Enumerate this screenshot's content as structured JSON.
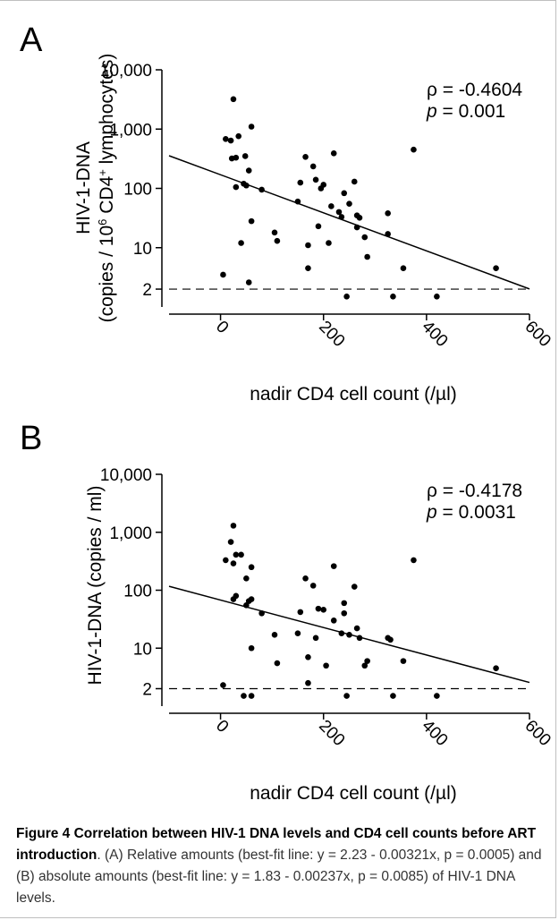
{
  "caption": {
    "title": "Figure 4 Correlation between HIV-1 DNA levels and CD4 cell counts before ART introduction",
    "text": ". (A) Relative amounts (best-fit line: y = 2.23 - 0.00321x, p = 0.0005) and (B) absolute amounts (best-fit line: y = 1.83 - 0.00237x, p = 0.0085) of HIV-1 DNA levels."
  },
  "chart_data": [
    {
      "type": "scatter",
      "panel": "A",
      "ylabel_line1": "HIV-1-DNA",
      "ylabel_line2_pre": "(copies / 10",
      "ylabel_line2_sup1": "6",
      "ylabel_line2_mid": " CD4",
      "ylabel_line2_sup2": "+",
      "ylabel_line2_post": " lymphocytes)",
      "xlabel": "nadir CD4 cell count (/µl)",
      "yscale": "log",
      "xlim": [
        -100,
        600
      ],
      "ylim_log10": [
        0,
        4
      ],
      "yticks": [
        {
          "v": 10000,
          "label": "10,000"
        },
        {
          "v": 1000,
          "label": "1,000"
        },
        {
          "v": 100,
          "label": "100"
        },
        {
          "v": 10,
          "label": "10"
        },
        {
          "v": 2,
          "label": "2"
        }
      ],
      "xticks": [
        {
          "v": 0,
          "label": "0"
        },
        {
          "v": 200,
          "label": "200"
        },
        {
          "v": 400,
          "label": "400"
        },
        {
          "v": 600,
          "label": "600"
        }
      ],
      "stats": {
        "rho": "ρ = -0.4604",
        "p_sym": "p",
        "p_val": " = 0.001"
      },
      "threshold": 2,
      "fit": {
        "intercept": 2.23,
        "slope": -0.00321
      },
      "points": [
        [
          5,
          3.5
        ],
        [
          10,
          680
        ],
        [
          20,
          640
        ],
        [
          25,
          3200
        ],
        [
          22,
          320
        ],
        [
          30,
          330
        ],
        [
          35,
          760
        ],
        [
          30,
          105
        ],
        [
          45,
          120
        ],
        [
          48,
          350
        ],
        [
          40,
          12
        ],
        [
          50,
          112
        ],
        [
          55,
          200
        ],
        [
          60,
          1100
        ],
        [
          60,
          28
        ],
        [
          55,
          2.6
        ],
        [
          80,
          95
        ],
        [
          105,
          18
        ],
        [
          110,
          13
        ],
        [
          150,
          60
        ],
        [
          155,
          125
        ],
        [
          165,
          340
        ],
        [
          170,
          11
        ],
        [
          170,
          4.5
        ],
        [
          180,
          235
        ],
        [
          185,
          140
        ],
        [
          190,
          23
        ],
        [
          195,
          100
        ],
        [
          200,
          115
        ],
        [
          210,
          12
        ],
        [
          215,
          50
        ],
        [
          220,
          390
        ],
        [
          230,
          40
        ],
        [
          235,
          33
        ],
        [
          240,
          83
        ],
        [
          245,
          1.5
        ],
        [
          250,
          55
        ],
        [
          260,
          130
        ],
        [
          265,
          35
        ],
        [
          270,
          32
        ],
        [
          265,
          22
        ],
        [
          280,
          15
        ],
        [
          285,
          7
        ],
        [
          325,
          38
        ],
        [
          325,
          17
        ],
        [
          335,
          1.5
        ],
        [
          355,
          4.5
        ],
        [
          375,
          450
        ],
        [
          420,
          1.5
        ],
        [
          535,
          4.5
        ]
      ]
    },
    {
      "type": "scatter",
      "panel": "B",
      "ylabel": "HIV-1-DNA (copies / ml)",
      "xlabel": "nadir CD4 cell count (/µl)",
      "yscale": "log",
      "xlim": [
        -100,
        600
      ],
      "ylim_log10": [
        0,
        4
      ],
      "yticks": [
        {
          "v": 10000,
          "label": "10,000"
        },
        {
          "v": 1000,
          "label": "1,000"
        },
        {
          "v": 100,
          "label": "100"
        },
        {
          "v": 10,
          "label": "10"
        },
        {
          "v": 2,
          "label": "2"
        }
      ],
      "xticks": [
        {
          "v": 0,
          "label": "0"
        },
        {
          "v": 200,
          "label": "200"
        },
        {
          "v": 400,
          "label": "400"
        },
        {
          "v": 600,
          "label": "600"
        }
      ],
      "stats": {
        "rho": "ρ = -0.4178",
        "p_sym": "p",
        "p_val": " = 0.0031"
      },
      "threshold": 2,
      "fit": {
        "intercept": 1.83,
        "slope": -0.00237
      },
      "points": [
        [
          5,
          2.3
        ],
        [
          10,
          330
        ],
        [
          20,
          680
        ],
        [
          25,
          1300
        ],
        [
          25,
          290
        ],
        [
          30,
          410
        ],
        [
          40,
          410
        ],
        [
          30,
          80
        ],
        [
          25,
          70
        ],
        [
          50,
          55
        ],
        [
          50,
          160
        ],
        [
          55,
          65
        ],
        [
          60,
          250
        ],
        [
          60,
          70
        ],
        [
          45,
          1.5
        ],
        [
          60,
          1.5
        ],
        [
          60,
          10
        ],
        [
          80,
          40
        ],
        [
          105,
          17
        ],
        [
          110,
          5.5
        ],
        [
          150,
          18
        ],
        [
          155,
          42
        ],
        [
          165,
          160
        ],
        [
          170,
          7
        ],
        [
          170,
          2.5
        ],
        [
          180,
          120
        ],
        [
          185,
          15
        ],
        [
          190,
          48
        ],
        [
          200,
          46
        ],
        [
          205,
          5
        ],
        [
          220,
          260
        ],
        [
          220,
          30
        ],
        [
          235,
          18
        ],
        [
          240,
          60
        ],
        [
          245,
          1.5
        ],
        [
          240,
          40
        ],
        [
          250,
          17
        ],
        [
          260,
          115
        ],
        [
          265,
          22
        ],
        [
          270,
          15
        ],
        [
          280,
          5
        ],
        [
          285,
          6
        ],
        [
          325,
          15
        ],
        [
          330,
          14
        ],
        [
          335,
          1.5
        ],
        [
          355,
          6
        ],
        [
          375,
          330
        ],
        [
          420,
          1.5
        ],
        [
          535,
          4.5
        ]
      ]
    }
  ]
}
